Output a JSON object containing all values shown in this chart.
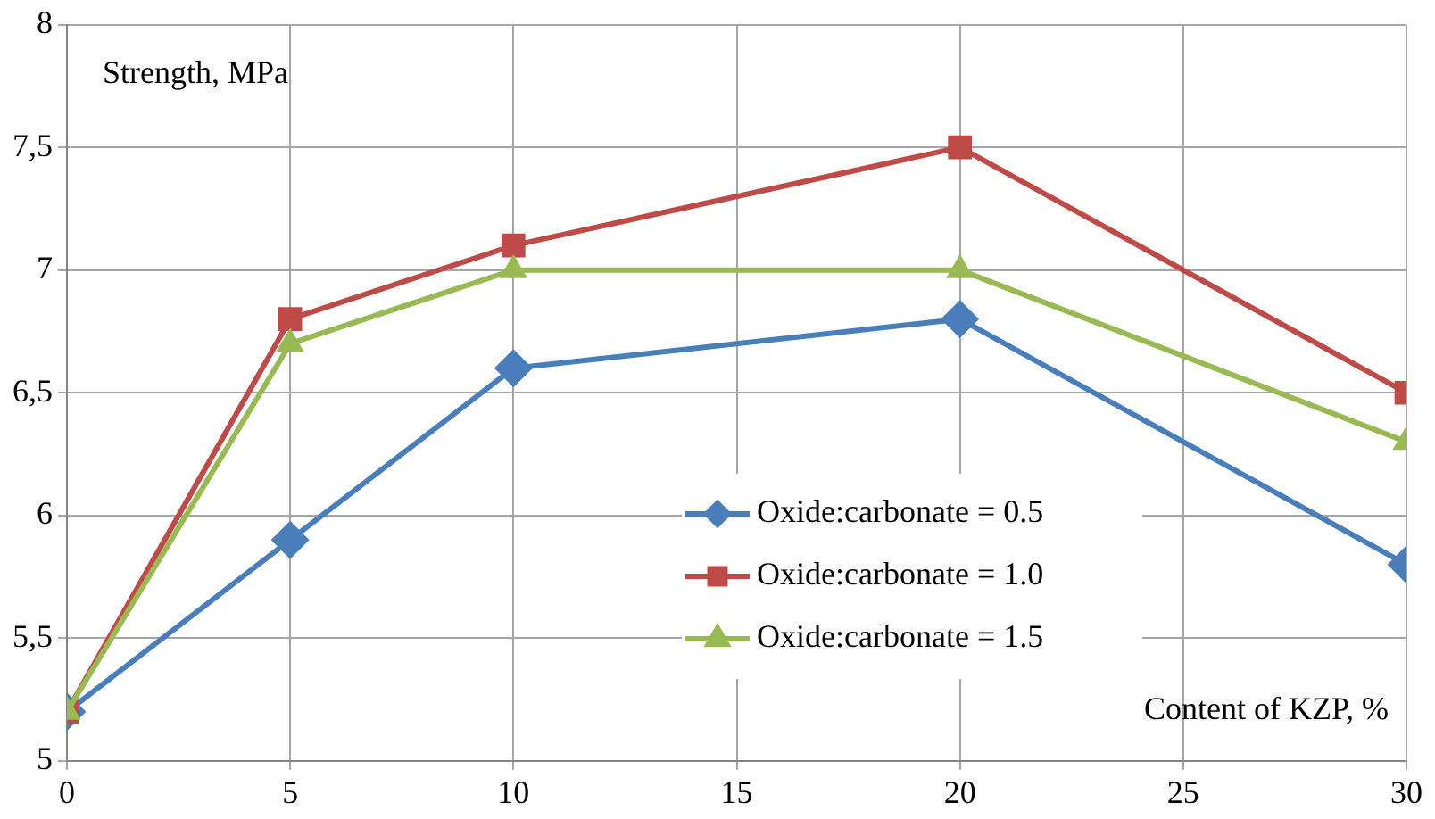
{
  "chart_data": {
    "type": "line",
    "xlabel": "Content of KZP, %",
    "ylabel": "Strength, MPa",
    "x": [
      0,
      5,
      10,
      20,
      30
    ],
    "series": [
      {
        "name": "Oxide:carbonate = 0.5",
        "color": "#4a7ebb",
        "marker": "diamond",
        "values": [
          5.2,
          5.9,
          6.6,
          6.8,
          5.8
        ]
      },
      {
        "name": "Oxide:carbonate = 1.0",
        "color": "#be4b48",
        "marker": "square",
        "values": [
          5.2,
          6.8,
          7.1,
          7.5,
          6.5
        ]
      },
      {
        "name": "Oxide:carbonate = 1.5",
        "color": "#98b954",
        "marker": "triangle",
        "values": [
          5.2,
          6.7,
          7.0,
          7.0,
          6.3
        ]
      }
    ],
    "xlim": [
      0,
      30
    ],
    "xticks": [
      0,
      5,
      10,
      15,
      20,
      25,
      30
    ],
    "ylim": [
      5,
      8
    ],
    "yticks": [
      5,
      {
        "value": 5.5,
        "label": "5,5"
      },
      6,
      {
        "value": 6.5,
        "label": "6,5"
      },
      7,
      {
        "value": 7.5,
        "label": "7,5"
      },
      8
    ],
    "grid": true,
    "legend": "right",
    "line_style": "solid"
  }
}
